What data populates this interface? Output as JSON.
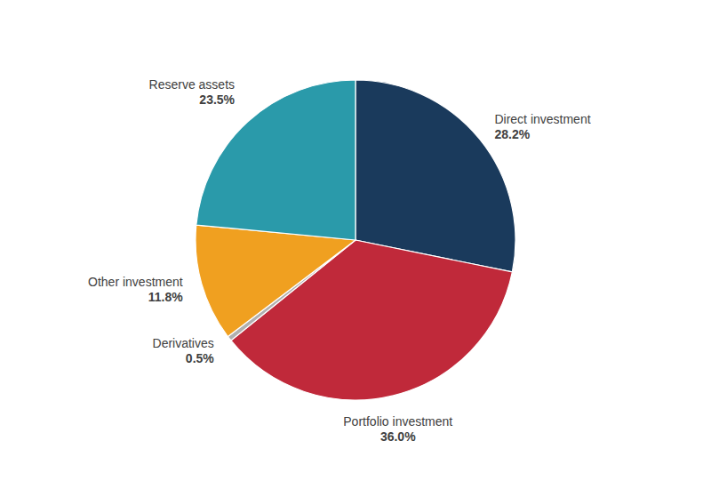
{
  "chart_data": {
    "type": "pie",
    "categories": [
      "Direct investment",
      "Portfolio investment",
      "Derivatives",
      "Other investment",
      "Reserve assets"
    ],
    "values": [
      28.2,
      36.0,
      0.5,
      11.8,
      23.5
    ],
    "value_labels": [
      "28.2%",
      "36.0%",
      "0.5%",
      "11.8%",
      "23.5%"
    ],
    "colors": [
      "#1a3a5c",
      "#c0293a",
      "#b0b0b0",
      "#f0a020",
      "#2a9aaa"
    ],
    "data_labels": true
  }
}
